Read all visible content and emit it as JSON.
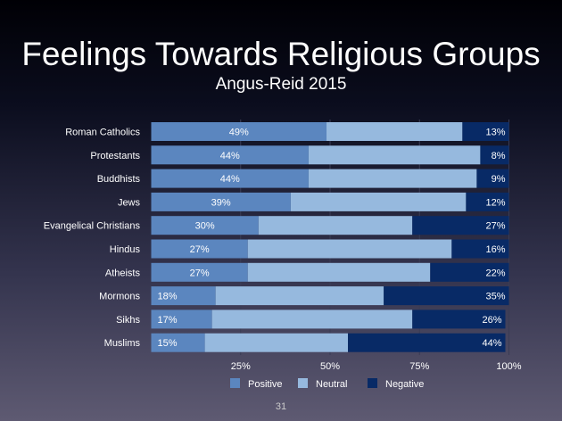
{
  "chart_data": {
    "type": "bar",
    "orientation": "horizontal",
    "stacked": true,
    "title": "Feelings Towards Religious Groups",
    "subtitle": "Angus-Reid 2015",
    "categories": [
      "Roman Catholics",
      "Protestants",
      "Buddhists",
      "Jews",
      "Evangelical Christians",
      "Hindus",
      "Atheists",
      "Mormons",
      "Sikhs",
      "Muslims"
    ],
    "series": [
      {
        "name": "Positive",
        "color": "#5b86bf",
        "values": [
          49,
          44,
          44,
          39,
          30,
          27,
          27,
          18,
          17,
          15
        ],
        "labeled": true
      },
      {
        "name": "Neutral",
        "color": "#96b9de",
        "values": [
          38,
          48,
          47,
          49,
          43,
          57,
          51,
          47,
          56,
          40
        ],
        "labeled": false
      },
      {
        "name": "Negative",
        "color": "#082a66",
        "values": [
          13,
          8,
          9,
          12,
          27,
          16,
          22,
          35,
          26,
          44
        ],
        "labeled": true
      }
    ],
    "xlim": [
      0,
      100
    ],
    "xticks": [
      "25%",
      "50%",
      "75%",
      "100%"
    ],
    "grid": true,
    "legend": "bottom"
  },
  "page_number": "31"
}
